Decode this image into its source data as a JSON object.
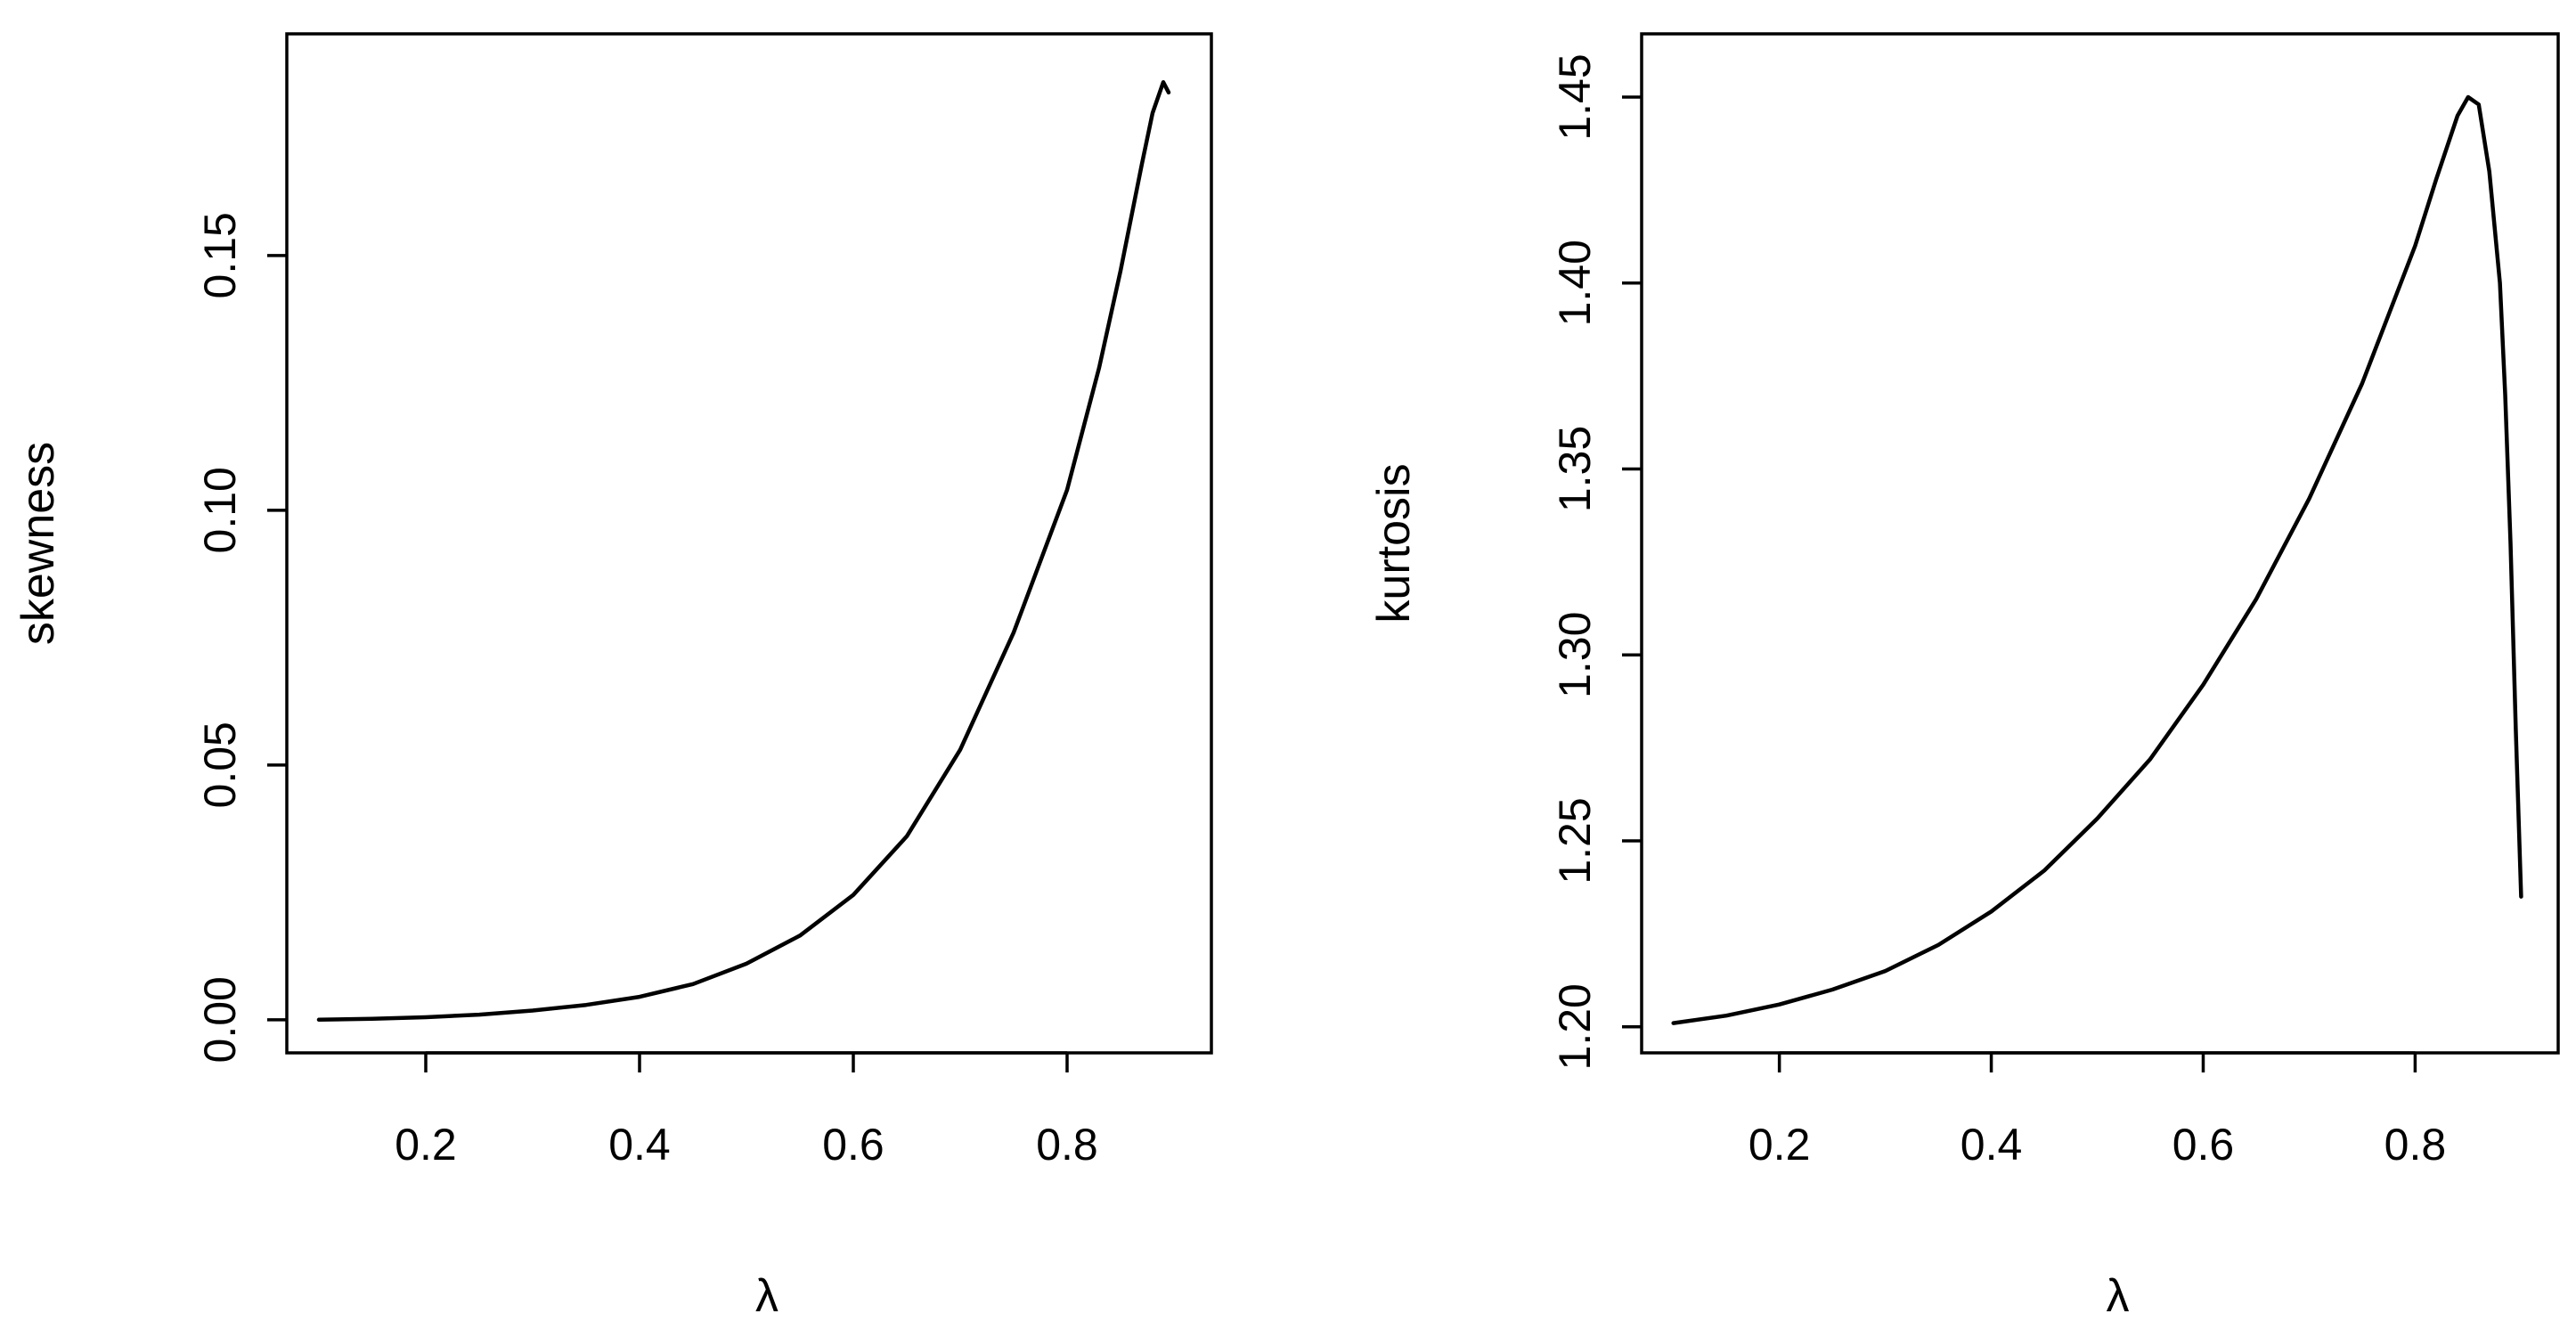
{
  "chart_data": [
    {
      "type": "line",
      "xlabel": "λ",
      "ylabel": "skewness",
      "xlim": [
        0.07,
        0.935
      ],
      "ylim": [
        -0.0065,
        0.1935
      ],
      "xticks": [
        "0.2",
        "0.4",
        "0.6",
        "0.8"
      ],
      "yticks": [
        "0.00",
        "0.05",
        "0.10",
        "0.15"
      ],
      "series": [
        {
          "x": [
            0.1,
            0.15,
            0.2,
            0.25,
            0.3,
            0.35,
            0.4,
            0.45,
            0.5,
            0.55,
            0.6,
            0.65,
            0.7,
            0.75,
            0.8,
            0.83,
            0.85,
            0.87,
            0.88,
            0.89,
            0.895
          ],
          "y": [
            0.0,
            0.0002,
            0.0005,
            0.001,
            0.0018,
            0.0029,
            0.0045,
            0.007,
            0.011,
            0.0165,
            0.0245,
            0.036,
            0.053,
            0.076,
            0.104,
            0.128,
            0.147,
            0.168,
            0.178,
            0.184,
            0.182
          ]
        }
      ]
    },
    {
      "type": "line",
      "xlabel": "λ",
      "ylabel": "kurtosis",
      "xlim": [
        0.07,
        0.935
      ],
      "ylim": [
        1.193,
        1.467
      ],
      "xticks": [
        "0.2",
        "0.4",
        "0.6",
        "0.8"
      ],
      "yticks": [
        "1.20",
        "1.25",
        "1.30",
        "1.35",
        "1.40",
        "1.45"
      ],
      "series": [
        {
          "x": [
            0.1,
            0.15,
            0.2,
            0.25,
            0.3,
            0.35,
            0.4,
            0.45,
            0.5,
            0.55,
            0.6,
            0.65,
            0.7,
            0.75,
            0.8,
            0.82,
            0.84,
            0.85,
            0.86,
            0.87,
            0.88,
            0.885,
            0.89,
            0.895,
            0.9
          ],
          "y": [
            1.201,
            1.203,
            1.206,
            1.21,
            1.215,
            1.222,
            1.231,
            1.242,
            1.256,
            1.272,
            1.292,
            1.315,
            1.342,
            1.373,
            1.41,
            1.428,
            1.445,
            1.45,
            1.448,
            1.43,
            1.4,
            1.37,
            1.33,
            1.28,
            1.235
          ]
        }
      ]
    }
  ]
}
